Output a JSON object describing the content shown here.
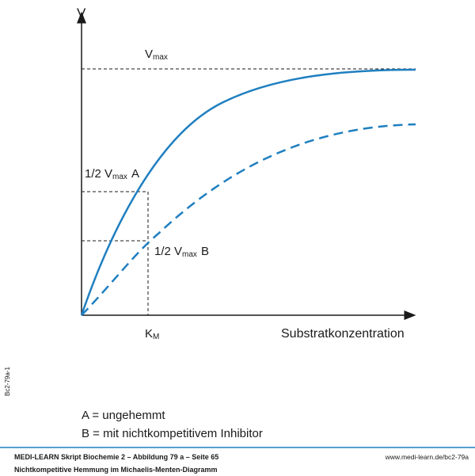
{
  "diagram": {
    "axis_y": "V",
    "axis_x": "Substratkonzentration",
    "vmax": {
      "main": "V",
      "sub": "max"
    },
    "half_a": {
      "prefix": "1/2 V",
      "sub": "max",
      "suffix": "A"
    },
    "half_b": {
      "prefix": "1/2 V",
      "sub": "max",
      "suffix": "B"
    },
    "km": {
      "main": "K",
      "sub": "M"
    }
  },
  "side_code": "Bc2-79a-1",
  "legend": [
    "A = ungehemmt",
    "B = mit nichtkompetitivem Inhibitor"
  ],
  "footer": {
    "source": "MEDI-LEARN Skript Biochemie 2 – Abbildung 79 a – Seite 65",
    "url": "www.medi-learn.de/bc2-79a",
    "caption": "Nichtkompetitive Hemmung im Michaelis-Menten-Diagramm"
  }
}
